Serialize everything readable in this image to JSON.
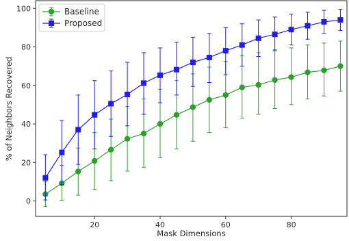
{
  "chart_data": {
    "type": "line",
    "xlabel": "Mask Dimensions",
    "ylabel": "% of Neighbors Recovered",
    "xlim": [
      2,
      97
    ],
    "ylim": [
      -8,
      104
    ],
    "xticks": [
      20,
      40,
      60,
      80
    ],
    "yticks": [
      0,
      20,
      40,
      60,
      80,
      100
    ],
    "grid": false,
    "legend_position": "top-left",
    "x": [
      5,
      10,
      15,
      20,
      25,
      30,
      35,
      40,
      45,
      50,
      55,
      60,
      65,
      70,
      75,
      80,
      85,
      90,
      95
    ],
    "series": [
      {
        "name": "Baseline",
        "color": "#2ca02c",
        "marker": "circle",
        "values": [
          3.5,
          9.2,
          15.3,
          20.8,
          26.6,
          32.3,
          35.0,
          40.0,
          44.7,
          48.7,
          52.5,
          55.0,
          59.0,
          60.3,
          62.8,
          64.3,
          66.8,
          67.8,
          70.0
        ],
        "err_low": [
          -2.8,
          0.3,
          3.0,
          6.0,
          10.5,
          15.5,
          17.5,
          22.5,
          27.0,
          31.0,
          35.5,
          38.0,
          43.0,
          45.0,
          48.0,
          50.0,
          53.0,
          54.5,
          57.0
        ],
        "err_high": [
          10.0,
          18.5,
          27.5,
          35.5,
          42.5,
          49.0,
          53.0,
          58.0,
          62.5,
          66.0,
          69.5,
          72.5,
          75.5,
          77.0,
          78.5,
          79.5,
          81.0,
          82.0,
          83.0
        ]
      },
      {
        "name": "Proposed",
        "color": "#1f1fe6",
        "marker": "square",
        "values": [
          12.0,
          25.2,
          37.0,
          44.7,
          50.5,
          55.3,
          61.2,
          65.3,
          68.2,
          72.0,
          74.5,
          78.0,
          81.0,
          84.5,
          86.5,
          89.0,
          91.0,
          93.0,
          94.0
        ],
        "err_low": [
          0.5,
          8.5,
          19.0,
          27.0,
          33.5,
          39.0,
          45.0,
          51.0,
          55.0,
          59.5,
          61.5,
          65.5,
          70.0,
          75.0,
          78.0,
          81.0,
          84.0,
          87.0,
          88.5
        ],
        "err_high": [
          24.0,
          41.8,
          55.0,
          62.5,
          67.5,
          72.0,
          77.0,
          79.5,
          82.5,
          85.0,
          87.0,
          90.0,
          92.0,
          94.0,
          95.5,
          97.0,
          98.0,
          99.0,
          99.5
        ]
      }
    ]
  }
}
